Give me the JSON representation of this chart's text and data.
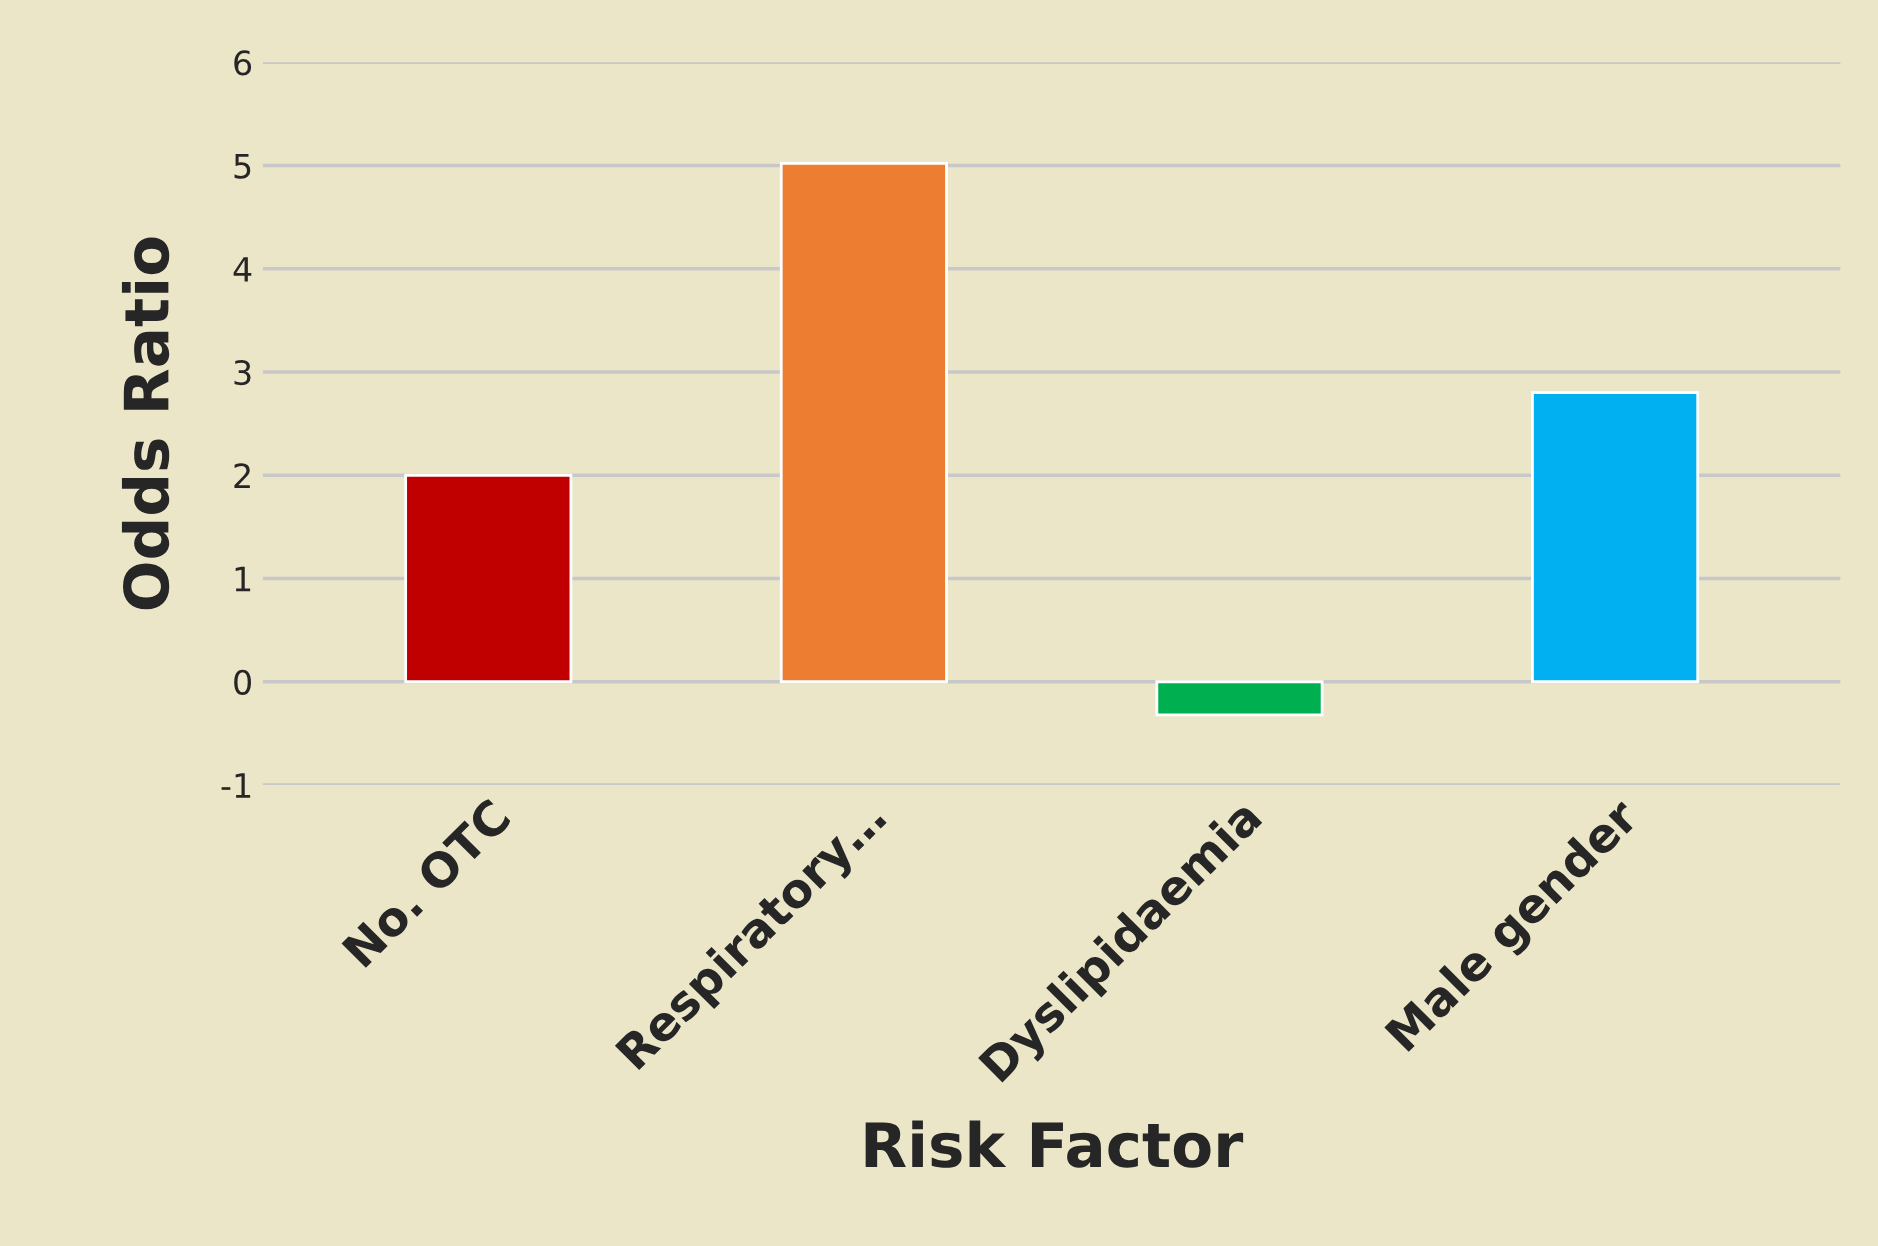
{
  "chart_data": {
    "type": "bar",
    "xlabel": "Risk Factor",
    "ylabel": "Odds Ratio",
    "categories": [
      "No. OTC",
      "Respiratory…",
      "Dyslipidaemia",
      "Male gender"
    ],
    "values": [
      2.0,
      5.02,
      -0.32,
      2.8
    ],
    "colors": [
      "#c00000",
      "#ed7d31",
      "#00b050",
      "#00b0f0"
    ],
    "ylim": [
      -1,
      6
    ],
    "yticks": [
      -1,
      0,
      1,
      2,
      3,
      4,
      5,
      6
    ],
    "grid": "y"
  }
}
